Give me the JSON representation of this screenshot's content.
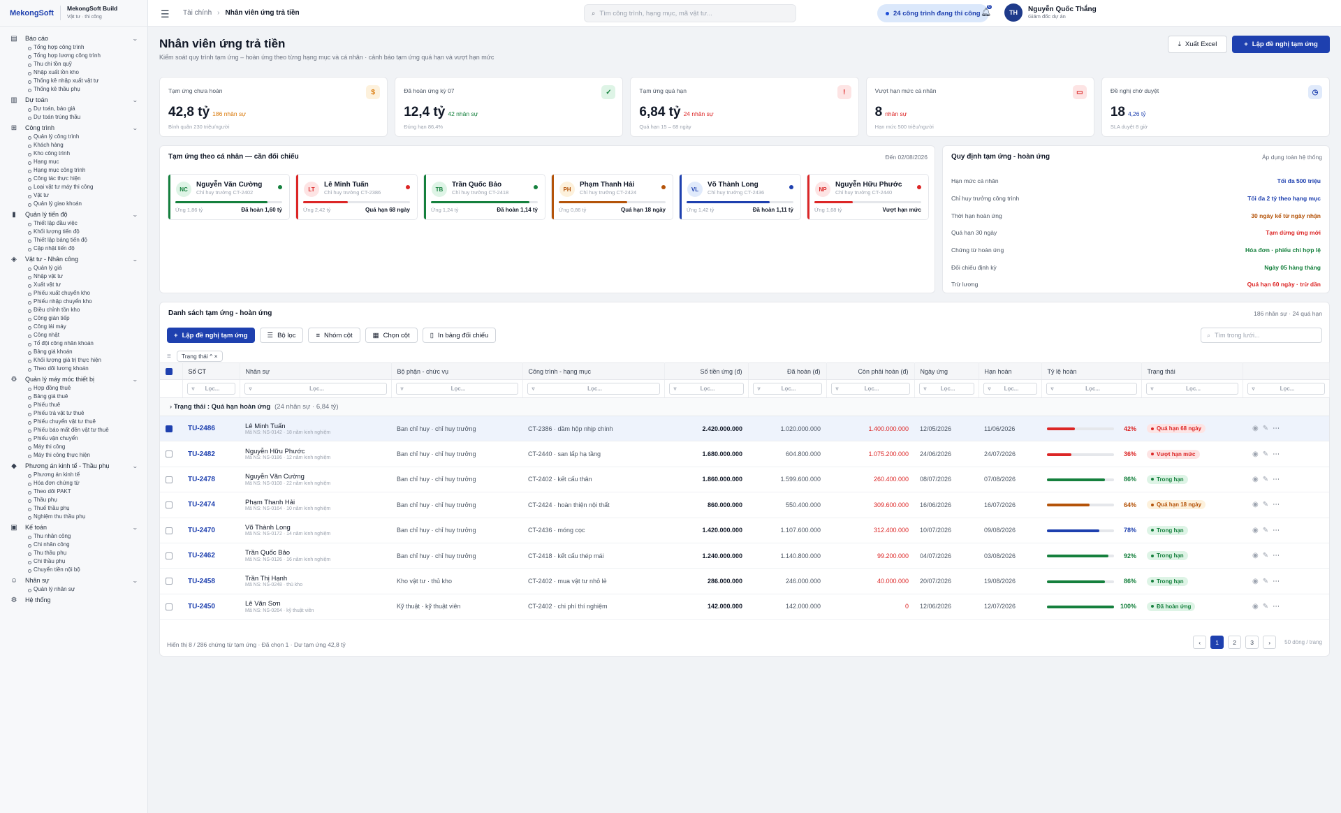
{
  "brand": {
    "logo": "MekongSoft",
    "app": "MekongSoft Build",
    "tag": "Vật tư · thi công"
  },
  "sidebar": [
    {
      "label": "Báo cáo",
      "icon": "report-icon",
      "items": [
        "Tổng hợp công trình",
        "Tổng hợp lương công trình",
        "Thu chi tồn quỹ",
        "Nhập xuất tồn kho",
        "Thống kê nhập xuất vật tư",
        "Thống kê thầu phụ"
      ]
    },
    {
      "label": "Dự toán",
      "icon": "estimate-icon",
      "items": [
        "Dự toán, báo giá",
        "Dự toán trúng thầu"
      ]
    },
    {
      "label": "Công trình",
      "icon": "map-icon",
      "items": [
        "Quản lý công trình",
        "Khách hàng",
        "Kho công trình",
        "Hạng mục",
        "Hạng mục công trình",
        "Công tác thực hiện",
        "Loại vật tư máy thi công",
        "Vật tư",
        "Quản lý giao khoán"
      ]
    },
    {
      "label": "Quản lý tiến độ",
      "icon": "chart-icon",
      "items": [
        "Thiết lập đầu việc",
        "Khối lượng tiến độ",
        "Thiết lập bảng tiến độ",
        "Cập nhật tiến độ"
      ]
    },
    {
      "label": "Vật tư - Nhân công",
      "icon": "box-icon",
      "items": [
        "Quản lý giá",
        "Nhập vật tư",
        "Xuất vật tư",
        "Phiếu xuất chuyển kho",
        "Phiếu nhập chuyển kho",
        "Điều chỉnh tồn kho",
        "Công gián tiếp",
        "Công lái máy",
        "Công nhật",
        "Tổ đội công nhân khoán",
        "Bảng giá khoán",
        "Khối lượng giá trị thực hiện",
        "Theo dõi lương khoán"
      ]
    },
    {
      "label": "Quản lý máy móc thiết bị",
      "icon": "gear-icon",
      "items": [
        "Hợp đồng thuê",
        "Bảng giá thuê",
        "Phiếu thuê",
        "Phiếu trả vật tư thuê",
        "Phiếu chuyển vật tư thuê",
        "Phiếu báo mất đền vật tư thuê",
        "Phiếu vận chuyển",
        "Máy thi công",
        "Máy thi công thực hiện"
      ]
    },
    {
      "label": "Phương án kinh tế - Thầu phụ",
      "icon": "tag-icon",
      "items": [
        "Phương án kinh tế",
        "Hóa đơn chứng từ",
        "Theo dõi PAKT",
        "Thầu phụ",
        "Thuế thầu phụ",
        "Nghiệm thu thầu phụ"
      ]
    },
    {
      "label": "Kế toán",
      "icon": "wallet-icon",
      "items": [
        "Thu nhân công",
        "Chi nhân công",
        "Thu thầu phụ",
        "Chi thầu phụ",
        "Chuyển tiền nội bộ"
      ]
    },
    {
      "label": "Nhân sự",
      "icon": "user-icon",
      "items": [
        "Quản lý nhân sự"
      ]
    },
    {
      "label": "Hệ thống",
      "icon": "settings-icon",
      "items": []
    }
  ],
  "topbar": {
    "crumb_root": "Tài chính",
    "crumb_current": "Nhân viên ứng trả tiền",
    "search_placeholder": "Tìm công trình, hạng mục, mã vật tư...",
    "status_pill": "24 công trình đang thi công",
    "notif_count": "6",
    "user_initials": "TH",
    "user_name": "Nguyễn Quốc Thắng",
    "user_role": "Giám đốc dự án"
  },
  "page": {
    "title": "Nhân viên ứng trả tiền",
    "subtitle": "Kiểm soát quy trình tạm ứng – hoàn ứng theo từng hạng mục và cá nhân · cảnh báo tạm ứng quá hạn và vượt hạn mức",
    "export_label": "Xuất Excel",
    "new_label": "Lập đề nghị tạm ứng"
  },
  "kpis": [
    {
      "label": "Tạm ứng chưa hoàn",
      "value": "42,8 tỷ",
      "note": "186 nhân sự",
      "sub": "Bình quân 230 triệu/người",
      "icon": "$",
      "color": "#d97706",
      "bg": "#fdf1dc"
    },
    {
      "label": "Đã hoàn ứng kỳ 07",
      "value": "12,4 tỷ",
      "note": "42 nhân sự",
      "sub": "Đúng hạn 86,4%",
      "icon": "✓",
      "color": "#15803d",
      "bg": "#def4e6"
    },
    {
      "label": "Tạm ứng quá hạn",
      "value": "6,84 tỷ",
      "note": "24 nhân sự",
      "sub": "Quá hạn 15 – 68 ngày",
      "icon": "!",
      "color": "#dc2626",
      "bg": "#fde4e4"
    },
    {
      "label": "Vượt hạn mức cá nhân",
      "value": "8",
      "note": "nhân sự",
      "sub": "Hạn mức 500 triệu/người",
      "icon": "▭",
      "color": "#dc2626",
      "bg": "#fde4e4"
    },
    {
      "label": "Đề nghị chờ duyệt",
      "value": "18",
      "note": "4,26 tỷ",
      "sub": "SLA duyệt 8 giờ",
      "icon": "◷",
      "color": "#1e40af",
      "bg": "#e0eafb"
    }
  ],
  "persons_panel": {
    "title": "Tạm ứng theo cá nhân — cần đối chiếu",
    "date": "Đến 02/08/2026",
    "people": [
      {
        "initials": "NC",
        "name": "Nguyễn Văn Cường",
        "role": "Chỉ huy trưởng CT-2402",
        "advance": "Ứng 1,86 tỷ",
        "status": "Đã hoàn 1,60 tỷ",
        "progress": 86,
        "color": "#15803d",
        "avbg": "#def4e6"
      },
      {
        "initials": "LT",
        "name": "Lê Minh Tuấn",
        "role": "Chỉ huy trưởng CT-2386",
        "advance": "Ứng 2,42 tỷ",
        "status": "Quá hạn 68 ngày",
        "progress": 42,
        "color": "#dc2626",
        "avbg": "#fde4e4"
      },
      {
        "initials": "TB",
        "name": "Trần Quốc Bảo",
        "role": "Chỉ huy trưởng CT-2418",
        "advance": "Ứng 1,24 tỷ",
        "status": "Đã hoàn 1,14 tỷ",
        "progress": 92,
        "color": "#15803d",
        "avbg": "#def4e6"
      },
      {
        "initials": "PH",
        "name": "Phạm Thanh Hải",
        "role": "Chỉ huy trưởng CT-2424",
        "advance": "Ứng 0,86 tỷ",
        "status": "Quá hạn 18 ngày",
        "progress": 64,
        "color": "#b45309",
        "avbg": "#fdf1dc"
      },
      {
        "initials": "VL",
        "name": "Võ Thành Long",
        "role": "Chỉ huy trưởng CT-2436",
        "advance": "Ứng 1,42 tỷ",
        "status": "Đã hoàn 1,11 tỷ",
        "progress": 78,
        "color": "#1e40af",
        "avbg": "#e0eafb"
      },
      {
        "initials": "NP",
        "name": "Nguyễn Hữu Phước",
        "role": "Chỉ huy trưởng CT-2440",
        "advance": "Ứng 1,68 tỷ",
        "status": "Vượt hạn mức",
        "progress": 36,
        "color": "#dc2626",
        "avbg": "#fde4e4"
      }
    ]
  },
  "rules_panel": {
    "title": "Quy định tạm ứng - hoàn ứng",
    "scope": "Áp dụng toàn hệ thống",
    "rules": [
      {
        "k": "Hạn mức cá nhân",
        "v": "Tối đa 500 triệu",
        "color": "#1e40af"
      },
      {
        "k": "Chỉ huy trưởng công trình",
        "v": "Tối đa 2 tỷ theo hạng mục",
        "color": "#1e40af"
      },
      {
        "k": "Thời hạn hoàn ứng",
        "v": "30 ngày kể từ ngày nhận",
        "color": "#b45309"
      },
      {
        "k": "Quá hạn 30 ngày",
        "v": "Tạm dừng ứng mới",
        "color": "#dc2626"
      },
      {
        "k": "Chứng từ hoàn ứng",
        "v": "Hóa đơn · phiếu chi hợp lệ",
        "color": "#15803d"
      },
      {
        "k": "Đối chiếu định kỳ",
        "v": "Ngày 05 hàng tháng",
        "color": "#15803d"
      },
      {
        "k": "Trừ lương",
        "v": "Quá hạn 60 ngày · trừ dần",
        "color": "#dc2626"
      }
    ]
  },
  "table": {
    "title": "Danh sách tạm ứng - hoàn ứng",
    "summary": "186 nhân sự · 24 quá hạn",
    "toolbar": {
      "new": "Lập đề nghị tạm ứng",
      "filter": "Bộ lọc",
      "group": "Nhóm cột",
      "columns": "Chọn cột",
      "print": "In bảng đối chiếu"
    },
    "grid_search": "Tìm trong lưới...",
    "chip": "Trạng thái",
    "filter_placeholder": "Lọc...",
    "columns": [
      "Số CT",
      "Nhân sự",
      "Bộ phận - chức vụ",
      "Công trình - hạng mục",
      "Số tiền ứng (đ)",
      "Đã hoàn (đ)",
      "Còn phải hoàn (đ)",
      "Ngày ứng",
      "Hạn hoàn",
      "Tỷ lệ hoàn",
      "Trạng thái"
    ],
    "group": {
      "key": "Trạng thái",
      "value": "Quá hạn hoàn ứng",
      "meta": "(24 nhân sự · 6,84 tỷ)"
    },
    "rows": [
      {
        "id": "TU-2486",
        "name": "Lê Minh Tuấn",
        "sub": "Mã NS: NS-0142 · 18 năm kinh nghiệm",
        "dept": "Ban chỉ huy · chỉ huy trưởng",
        "proj": "CT-2386 · dầm hộp nhịp chính",
        "adv": "2.420.000.000",
        "paid": "1.020.000.000",
        "remain": "1.400.000.000",
        "date": "12/05/2026",
        "due": "11/06/2026",
        "pct": 42,
        "barColor": "#dc2626",
        "status": "Quá hạn 68 ngày",
        "sColor": "#dc2626",
        "sBg": "#fde4e4",
        "selected": true
      },
      {
        "id": "TU-2482",
        "name": "Nguyễn Hữu Phước",
        "sub": "Mã NS: NS-0186 · 12 năm kinh nghiệm",
        "dept": "Ban chỉ huy · chỉ huy trưởng",
        "proj": "CT-2440 · san lấp hạ tầng",
        "adv": "1.680.000.000",
        "paid": "604.800.000",
        "remain": "1.075.200.000",
        "date": "24/06/2026",
        "due": "24/07/2026",
        "pct": 36,
        "barColor": "#dc2626",
        "status": "Vượt hạn mức",
        "sColor": "#dc2626",
        "sBg": "#fde4e4",
        "selected": false
      },
      {
        "id": "TU-2478",
        "name": "Nguyễn Văn Cường",
        "sub": "Mã NS: NS-0108 · 22 năm kinh nghiệm",
        "dept": "Ban chỉ huy · chỉ huy trưởng",
        "proj": "CT-2402 · kết cấu thân",
        "adv": "1.860.000.000",
        "paid": "1.599.600.000",
        "remain": "260.400.000",
        "date": "08/07/2026",
        "due": "07/08/2026",
        "pct": 86,
        "barColor": "#15803d",
        "status": "Trong hạn",
        "sColor": "#15803d",
        "sBg": "#def4e6",
        "selected": false
      },
      {
        "id": "TU-2474",
        "name": "Phạm Thanh Hải",
        "sub": "Mã NS: NS-0164 · 10 năm kinh nghiệm",
        "dept": "Ban chỉ huy · chỉ huy trưởng",
        "proj": "CT-2424 · hoàn thiện nội thất",
        "adv": "860.000.000",
        "paid": "550.400.000",
        "remain": "309.600.000",
        "date": "16/06/2026",
        "due": "16/07/2026",
        "pct": 64,
        "barColor": "#b45309",
        "status": "Quá hạn 18 ngày",
        "sColor": "#b45309",
        "sBg": "#fdf1dc",
        "selected": false
      },
      {
        "id": "TU-2470",
        "name": "Võ Thành Long",
        "sub": "Mã NS: NS-0172 · 14 năm kinh nghiệm",
        "dept": "Ban chỉ huy · chỉ huy trưởng",
        "proj": "CT-2436 · móng cọc",
        "adv": "1.420.000.000",
        "paid": "1.107.600.000",
        "remain": "312.400.000",
        "date": "10/07/2026",
        "due": "09/08/2026",
        "pct": 78,
        "barColor": "#1e40af",
        "status": "Trong hạn",
        "sColor": "#15803d",
        "sBg": "#def4e6",
        "selected": false
      },
      {
        "id": "TU-2462",
        "name": "Trần Quốc Bảo",
        "sub": "Mã NS: NS-0126 · 16 năm kinh nghiệm",
        "dept": "Ban chỉ huy · chỉ huy trưởng",
        "proj": "CT-2418 · kết cấu thép mái",
        "adv": "1.240.000.000",
        "paid": "1.140.800.000",
        "remain": "99.200.000",
        "date": "04/07/2026",
        "due": "03/08/2026",
        "pct": 92,
        "barColor": "#15803d",
        "status": "Trong hạn",
        "sColor": "#15803d",
        "sBg": "#def4e6",
        "selected": false
      },
      {
        "id": "TU-2458",
        "name": "Trần Thị Hạnh",
        "sub": "Mã NS: NS-0248 · thủ kho",
        "dept": "Kho vật tư · thủ kho",
        "proj": "CT-2402 · mua vật tư nhỏ lẻ",
        "adv": "286.000.000",
        "paid": "246.000.000",
        "remain": "40.000.000",
        "date": "20/07/2026",
        "due": "19/08/2026",
        "pct": 86,
        "barColor": "#15803d",
        "status": "Trong hạn",
        "sColor": "#15803d",
        "sBg": "#def4e6",
        "selected": false
      },
      {
        "id": "TU-2450",
        "name": "Lê Văn Sơn",
        "sub": "Mã NS: NS-0264 · kỹ thuật viên",
        "dept": "Kỹ thuật · kỹ thuật viên",
        "proj": "CT-2402 · chi phí thí nghiệm",
        "adv": "142.000.000",
        "paid": "142.000.000",
        "remain": "0",
        "date": "12/06/2026",
        "due": "12/07/2026",
        "pct": 100,
        "barColor": "#15803d",
        "status": "Đã hoàn ứng",
        "sColor": "#15803d",
        "sBg": "#def4e6",
        "selected": false
      }
    ],
    "footer": "Hiển thị 8 / 286 chứng từ tạm ứng · Đã chọn 1 · Dư tạm ứng 42,8 tỷ",
    "pages": [
      "1",
      "2",
      "3"
    ],
    "page_info": "50 dòng / trang"
  }
}
